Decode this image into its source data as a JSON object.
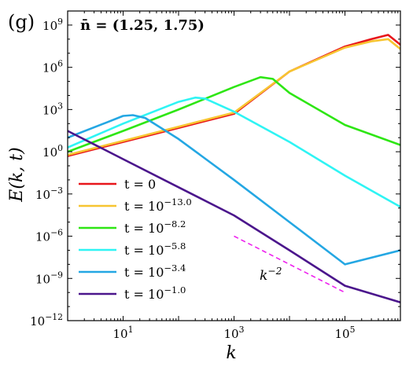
{
  "chart_data": {
    "type": "line",
    "panel_label": "(g)",
    "annotation": "n̄ = (1.25, 1.75)",
    "xlabel": "k",
    "ylabel": "E(k, t)",
    "xscale": "log",
    "yscale": "log",
    "xlim": [
      1,
      1000000
    ],
    "ylim": [
      1e-12,
      10000000000.0
    ],
    "x_ticks": [
      {
        "value": 10,
        "base": "10",
        "exp": "1"
      },
      {
        "value": 1000,
        "base": "10",
        "exp": "3"
      },
      {
        "value": 100000,
        "base": "10",
        "exp": "5"
      }
    ],
    "y_ticks": [
      {
        "value": 1e-12,
        "base": "10",
        "exp": "−12"
      },
      {
        "value": 1e-09,
        "base": "10",
        "exp": "−9"
      },
      {
        "value": 1e-06,
        "base": "10",
        "exp": "−6"
      },
      {
        "value": 0.001,
        "base": "10",
        "exp": "−3"
      },
      {
        "value": 1,
        "base": "10",
        "exp": "0"
      },
      {
        "value": 1000,
        "base": "10",
        "exp": "3"
      },
      {
        "value": 1000000.0,
        "base": "10",
        "exp": "6"
      },
      {
        "value": 1000000000.0,
        "base": "10",
        "exp": "9"
      }
    ],
    "legend_position": "lower-left",
    "series": [
      {
        "name_base": "t = 0",
        "name_exp": "",
        "color": "#e8161b",
        "points": [
          [
            1,
            0.5
          ],
          [
            10,
            5
          ],
          [
            100,
            50
          ],
          [
            1000,
            500
          ],
          [
            10000,
            500000.0
          ],
          [
            100000,
            30000000.0
          ],
          [
            300000,
            100000000.0
          ],
          [
            600000,
            200000000.0
          ],
          [
            1000000,
            40000000.0
          ]
        ]
      },
      {
        "name_base": "t = 10",
        "name_exp": "−13.0",
        "color": "#f7c531",
        "points": [
          [
            1,
            0.6
          ],
          [
            10,
            6
          ],
          [
            100,
            60
          ],
          [
            1000,
            600
          ],
          [
            10000,
            500000.0
          ],
          [
            100000,
            25000000.0
          ],
          [
            300000,
            70000000.0
          ],
          [
            600000,
            100000000.0
          ],
          [
            1000000,
            20000000.0
          ]
        ]
      },
      {
        "name_base": "t = 10",
        "name_exp": "−8.2",
        "color": "#2ee614",
        "points": [
          [
            1,
            1
          ],
          [
            10,
            30
          ],
          [
            100,
            1000
          ],
          [
            1000,
            40000
          ],
          [
            3000,
            200000
          ],
          [
            5000,
            150000
          ],
          [
            10000,
            15000
          ],
          [
            100000,
            80
          ],
          [
            1000000,
            3
          ]
        ]
      },
      {
        "name_base": "t = 10",
        "name_exp": "−5.8",
        "color": "#2ff4f4",
        "points": [
          [
            1,
            2
          ],
          [
            10,
            100
          ],
          [
            100,
            3500
          ],
          [
            200,
            7000
          ],
          [
            300,
            6000
          ],
          [
            1000,
            700
          ],
          [
            10000,
            5
          ],
          [
            100000,
            0.02
          ],
          [
            1000000,
            0.00012
          ]
        ]
      },
      {
        "name_base": "t = 10",
        "name_exp": "−3.4",
        "color": "#24a7e3",
        "points": [
          [
            1,
            10
          ],
          [
            5,
            120
          ],
          [
            10,
            350
          ],
          [
            15,
            400
          ],
          [
            25,
            250
          ],
          [
            100,
            8
          ],
          [
            1000,
            0.01
          ],
          [
            10000,
            1e-05
          ],
          [
            100000,
            1e-08
          ],
          [
            1000000,
            1e-07
          ]
        ]
      },
      {
        "name_base": "t = 10",
        "name_exp": "−1.0",
        "color": "#4b168c",
        "points": [
          [
            1,
            30
          ],
          [
            10,
            0.3
          ],
          [
            100,
            0.003
          ],
          [
            1000,
            3e-05
          ],
          [
            10000,
            1e-07
          ],
          [
            100000,
            3e-10
          ],
          [
            1000000,
            2e-11
          ]
        ]
      }
    ],
    "slope_line": {
      "label_base": "k",
      "label_exp": "−2",
      "color": "#ee22ee",
      "points": [
        [
          1000,
          1e-06
        ],
        [
          100000,
          1e-10
        ]
      ]
    }
  }
}
